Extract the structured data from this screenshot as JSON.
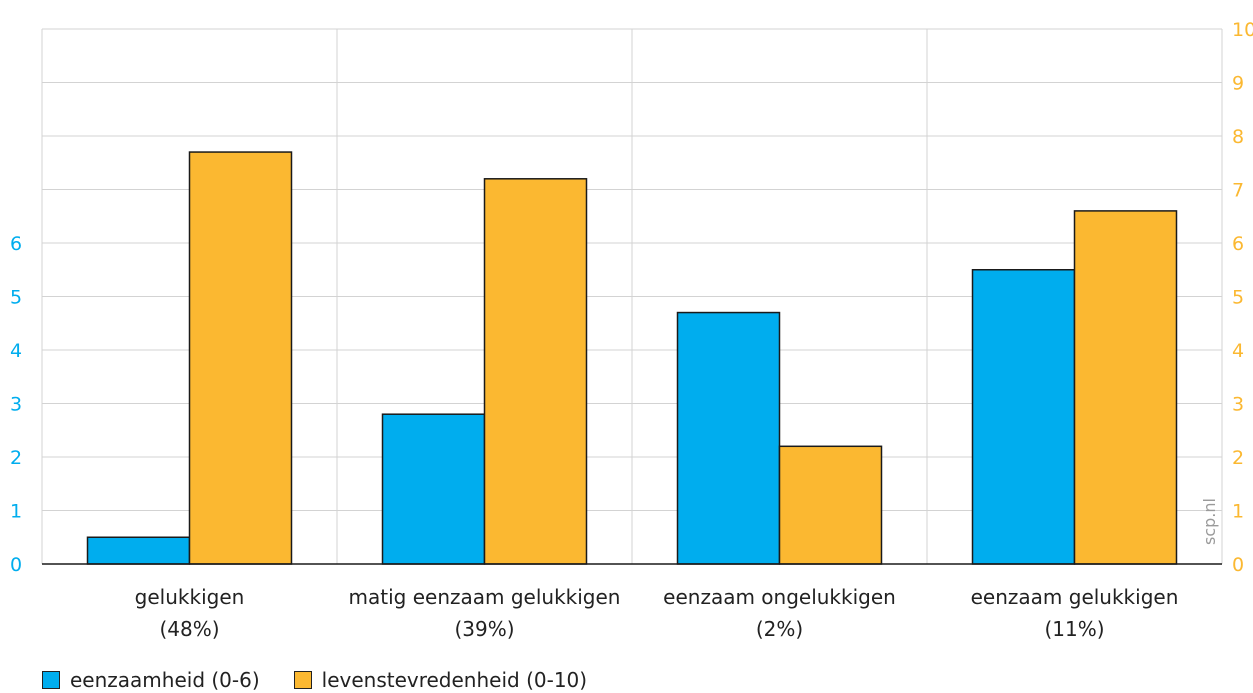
{
  "colors": {
    "series_left": "#00ADEE",
    "series_right": "#FBB831",
    "axis_left": "#00ADEE",
    "axis_right": "#FBB831",
    "grid": "#d3d3d3",
    "text": "#222222"
  },
  "watermark": "scp.nl",
  "chart_data": {
    "type": "bar",
    "categories": [
      [
        "gelukkigen",
        "(48%)"
      ],
      [
        "matig eenzaam gelukkigen",
        "(39%)"
      ],
      [
        "eenzaam ongelukkigen",
        "(2%)"
      ],
      [
        "eenzaam gelukkigen",
        "(11%)"
      ]
    ],
    "series": [
      {
        "name": "eenzaamheid (0-6)",
        "axis": "left",
        "values": [
          0.5,
          2.8,
          4.7,
          5.5
        ]
      },
      {
        "name": "levenstevredenheid (0-10)",
        "axis": "right",
        "values": [
          7.7,
          7.2,
          2.2,
          6.6
        ]
      }
    ],
    "y_left": {
      "ticks": [
        "0",
        "1",
        "2",
        "3",
        "4",
        "5",
        "6"
      ],
      "range": [
        0,
        10
      ]
    },
    "y_right": {
      "ticks": [
        "0",
        "1",
        "2",
        "3",
        "4",
        "5",
        "6",
        "7",
        "8",
        "9",
        "10"
      ],
      "range": [
        0,
        10
      ]
    },
    "grid": true,
    "legend_position": "bottom-left"
  }
}
